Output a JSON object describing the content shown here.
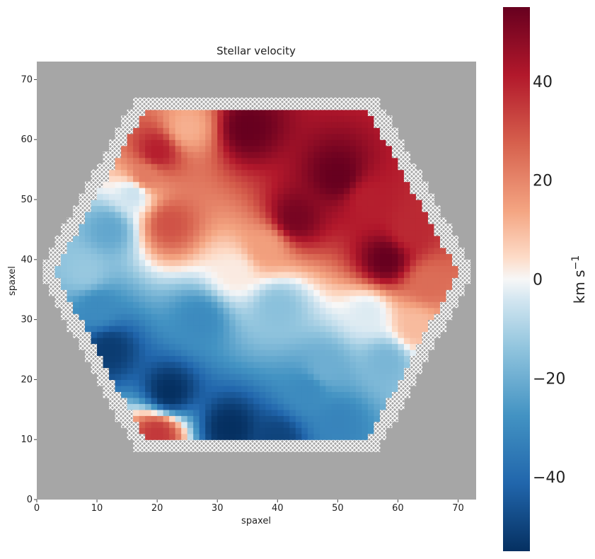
{
  "chart_data": {
    "type": "heatmap",
    "title": "Stellar velocity",
    "xlabel": "spaxel",
    "ylabel": "spaxel",
    "xlim": [
      0,
      73
    ],
    "ylim": [
      0,
      73
    ],
    "xticks": [
      0,
      10,
      20,
      30,
      40,
      50,
      60,
      70
    ],
    "yticks": [
      0,
      10,
      20,
      30,
      40,
      50,
      60,
      70
    ],
    "grid": false,
    "background_color": "#a6a6a6",
    "colormap": "RdBu_r",
    "colorbar": {
      "label": "km s",
      "label_exponent": "−1",
      "range": [
        -55,
        55
      ],
      "ticks": [
        -40,
        -20,
        0,
        20,
        40
      ],
      "tick_labels": [
        "−40",
        "−20",
        "0",
        "20",
        "40"
      ]
    },
    "hexagon_vertices": [
      [
        18,
        65
      ],
      [
        55,
        65
      ],
      [
        70,
        38
      ],
      [
        55,
        10
      ],
      [
        18,
        10
      ],
      [
        3,
        38
      ]
    ],
    "velocity_field_description_points": [
      {
        "x": 35,
        "y": 62,
        "v": 55
      },
      {
        "x": 43,
        "y": 47,
        "v": 52
      },
      {
        "x": 50,
        "y": 54,
        "v": 55
      },
      {
        "x": 25,
        "y": 62,
        "v": 12
      },
      {
        "x": 20,
        "y": 58,
        "v": 40
      },
      {
        "x": 18,
        "y": 54,
        "v": 22
      },
      {
        "x": 16,
        "y": 51,
        "v": -5
      },
      {
        "x": 22,
        "y": 46,
        "v": 30
      },
      {
        "x": 55,
        "y": 50,
        "v": 40
      },
      {
        "x": 62,
        "y": 45,
        "v": 38
      },
      {
        "x": 58,
        "y": 40,
        "v": 55
      },
      {
        "x": 65,
        "y": 36,
        "v": 25
      },
      {
        "x": 63,
        "y": 29,
        "v": 10
      },
      {
        "x": 55,
        "y": 31,
        "v": -3
      },
      {
        "x": 58,
        "y": 23,
        "v": -18
      },
      {
        "x": 12,
        "y": 45,
        "v": -22
      },
      {
        "x": 8,
        "y": 38,
        "v": -13
      },
      {
        "x": 10,
        "y": 32,
        "v": -30
      },
      {
        "x": 12,
        "y": 25,
        "v": -52
      },
      {
        "x": 22,
        "y": 18,
        "v": -55
      },
      {
        "x": 32,
        "y": 12,
        "v": -55
      },
      {
        "x": 40,
        "y": 10,
        "v": -50
      },
      {
        "x": 45,
        "y": 18,
        "v": -30
      },
      {
        "x": 50,
        "y": 13,
        "v": -32
      },
      {
        "x": 48,
        "y": 22,
        "v": -20
      },
      {
        "x": 33,
        "y": 38,
        "v": 2
      },
      {
        "x": 40,
        "y": 32,
        "v": -15
      },
      {
        "x": 27,
        "y": 30,
        "v": -30
      },
      {
        "x": 38,
        "y": 42,
        "v": 15
      },
      {
        "x": 20,
        "y": 11,
        "v": 35
      }
    ]
  }
}
